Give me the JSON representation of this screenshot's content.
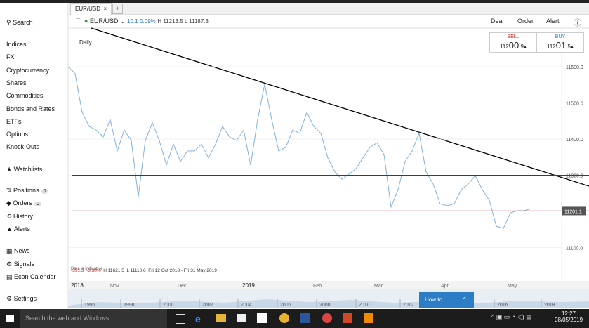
{
  "sidebar": {
    "search": "Search",
    "markets": [
      "Indices",
      "FX",
      "Cryptocurrency",
      "Shares",
      "Commodities",
      "Bonds and Rates",
      "ETFs",
      "Options",
      "Knock-Outs"
    ],
    "watchlists": "Watchlists",
    "account": [
      {
        "label": "Positions",
        "count": "0"
      },
      {
        "label": "Orders",
        "count": "0"
      },
      {
        "label": "History"
      },
      {
        "label": "Alerts"
      }
    ],
    "tools": [
      "News",
      "Signals",
      "Econ Calendar"
    ],
    "settings": "Settings"
  },
  "header": {
    "tab": "EUR/USD",
    "tab_close": "×",
    "tab_add": "+",
    "instrument": "EUR/USD ⌄",
    "change": "10.1",
    "change_pct": "0.09%",
    "high_low": "H 11213.5 L 11187.3",
    "actions": [
      "Deal",
      "Order",
      "Alert",
      "ⓘ"
    ],
    "sell": {
      "label": "SELL",
      "big": "112",
      "mid": "00",
      "small": ".9▴"
    },
    "buy": {
      "label": "BUY",
      "big": "112",
      "mid": "01",
      "small": ".5▴"
    }
  },
  "chart_data": {
    "type": "line",
    "period": "Daily",
    "color": "#7fb1dc",
    "values": [
      11600,
      11581,
      11474,
      11435,
      11425,
      11406,
      11454,
      11367,
      11425,
      11396,
      11241,
      11396,
      11445,
      11396,
      11328,
      11386,
      11338,
      11367,
      11367,
      11386,
      11348,
      11386,
      11435,
      11406,
      11396,
      11425,
      11328,
      11454,
      11552,
      11454,
      11367,
      11377,
      11425,
      11416,
      11474,
      11435,
      11416,
      11348,
      11309,
      11289,
      11303,
      11318,
      11348,
      11377,
      11390,
      11357,
      11212,
      11260,
      11338,
      11367,
      11416,
      11309,
      11276,
      11221,
      11216,
      11221,
      11260,
      11276,
      11299,
      11260,
      11231,
      11159,
      11153,
      11196,
      11202,
      11202,
      11208
    ],
    "ylim": [
      11000,
      11700
    ],
    "yticks": [
      {
        "value": 11100,
        "label": "11100.0"
      },
      {
        "value": 11300,
        "label": "11300.0"
      },
      {
        "value": 11400,
        "label": "11400.0"
      },
      {
        "value": 11500,
        "label": "11500.0"
      },
      {
        "value": 11600,
        "label": "11600.0"
      }
    ],
    "grid": true,
    "levels": [
      11300,
      11201.1
    ],
    "level_color": "#cc0000",
    "price": {
      "value": 11201.1,
      "label": "11201.1"
    },
    "x_labels": [
      "2018",
      "Nov",
      "Dec",
      "2019",
      "Feb",
      "Mar",
      "Apr",
      "May"
    ],
    "stats": {
      "change": "-391.3",
      "change_pct": "-3.38%",
      "high": "H 11621.5",
      "low": "L 11110.6",
      "range": "Fri 12 Oct 2018 - Fri 31 May 2019",
      "note": "Data is indicative"
    },
    "navigator_years": [
      "1996",
      "1998",
      "2000",
      "2002",
      "2004",
      "2006",
      "2008",
      "2010",
      "2012",
      "2016",
      "2018"
    ]
  },
  "popup": {
    "text": "How to...",
    "icon": "⌃"
  },
  "taskbar": {
    "search": "Search the web and Windows",
    "time": "12:27",
    "date": "08/05/2019"
  }
}
